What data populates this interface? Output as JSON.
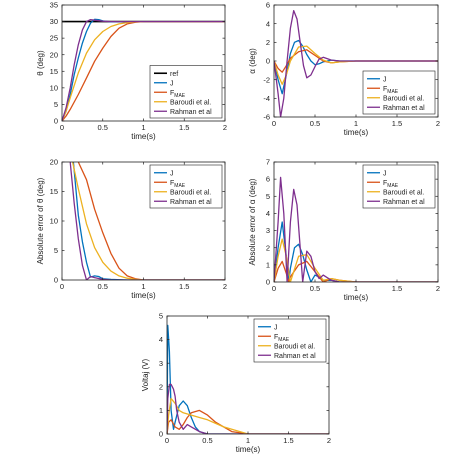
{
  "figure": {
    "colors": {
      "ref": "#000000",
      "J": "#0072BD",
      "FMAE": "#D95319",
      "Baroudi": "#EDB120",
      "Rahman": "#7E2F8E"
    }
  },
  "chart_data": [
    {
      "id": "theta",
      "type": "line",
      "xlabel": "time(s)",
      "ylabel": "θ (deg)",
      "xlim": [
        0,
        2
      ],
      "ylim": [
        0,
        35
      ],
      "xticks": [
        0,
        0.5,
        1,
        1.5,
        2
      ],
      "xtick_labels": [
        "0",
        "0.5",
        "1",
        "1.5",
        "2"
      ],
      "yticks": [
        0,
        5,
        10,
        15,
        20,
        25,
        30,
        35
      ],
      "ytick_labels": [
        "0",
        "5",
        "10",
        "15",
        "20",
        "25",
        "30",
        "35"
      ],
      "legend_position": "bottom-right",
      "series": [
        {
          "key": "ref",
          "name": "ref",
          "sub": "",
          "x": [
            0,
            2
          ],
          "y": [
            30,
            30
          ]
        },
        {
          "key": "J",
          "name": "J",
          "sub": "",
          "x": [
            0,
            0.05,
            0.1,
            0.15,
            0.2,
            0.25,
            0.3,
            0.35,
            0.4,
            0.45,
            0.5,
            0.6,
            0.7,
            0.8,
            1.0,
            2.0
          ],
          "y": [
            0,
            3,
            8,
            14,
            19,
            23.5,
            27,
            29.5,
            30.7,
            30.6,
            30.2,
            29.9,
            30,
            30,
            30,
            30
          ]
        },
        {
          "key": "FMAE",
          "name": "F",
          "sub": "MAE",
          "x": [
            0,
            0.05,
            0.1,
            0.2,
            0.3,
            0.4,
            0.5,
            0.6,
            0.7,
            0.8,
            0.9,
            1.0,
            2.0
          ],
          "y": [
            0,
            1.5,
            3.5,
            8,
            13,
            18,
            22,
            25.5,
            28,
            29.3,
            29.8,
            30,
            30
          ]
        },
        {
          "key": "Baroudi",
          "name": "Baroudi et al.",
          "sub": "",
          "x": [
            0,
            0.05,
            0.1,
            0.2,
            0.3,
            0.4,
            0.5,
            0.6,
            0.7,
            0.8,
            0.9,
            1.0,
            2.0
          ],
          "y": [
            0,
            3,
            7,
            14.5,
            20.5,
            24.5,
            27,
            28.5,
            29.3,
            29.7,
            29.9,
            30,
            30
          ]
        },
        {
          "key": "Rahman",
          "name": "Rahman et al",
          "sub": "",
          "x": [
            0,
            0.05,
            0.1,
            0.15,
            0.2,
            0.25,
            0.3,
            0.35,
            0.4,
            0.5,
            0.6,
            0.8,
            2.0
          ],
          "y": [
            0,
            4,
            10,
            17,
            23,
            27.5,
            30,
            30.6,
            30.4,
            30.1,
            30,
            30,
            30
          ]
        }
      ]
    },
    {
      "id": "alpha",
      "type": "line",
      "xlabel": "time(s)",
      "ylabel": "α (deg)",
      "xlim": [
        0,
        2
      ],
      "ylim": [
        -6,
        6
      ],
      "xticks": [
        0,
        0.5,
        1,
        1.5,
        2
      ],
      "xtick_labels": [
        "0",
        "0.5",
        "1",
        "1.5",
        "2"
      ],
      "yticks": [
        -6,
        -4,
        -2,
        0,
        2,
        4,
        6
      ],
      "ytick_labels": [
        "-6",
        "-4",
        "-2",
        "0",
        "2",
        "4",
        "6"
      ],
      "legend_position": "bottom-right",
      "series": [
        {
          "key": "J",
          "name": "J",
          "sub": "",
          "x": [
            0,
            0.05,
            0.1,
            0.15,
            0.2,
            0.25,
            0.3,
            0.35,
            0.4,
            0.45,
            0.5,
            0.55,
            0.6,
            0.7,
            0.8,
            1.0,
            2.0
          ],
          "y": [
            0,
            -2,
            -3.5,
            -1.5,
            0.8,
            2.0,
            2.2,
            1.6,
            0.7,
            0,
            -0.4,
            -0.3,
            -0.1,
            0.1,
            0,
            0,
            0
          ]
        },
        {
          "key": "FMAE",
          "name": "F",
          "sub": "MAE",
          "x": [
            0,
            0.05,
            0.1,
            0.15,
            0.2,
            0.3,
            0.4,
            0.5,
            0.6,
            0.7,
            0.8,
            1.0,
            2.0
          ],
          "y": [
            0,
            -0.8,
            -1.2,
            -0.5,
            0.3,
            1.0,
            1.2,
            0.6,
            0,
            -0.2,
            -0.1,
            0,
            0
          ]
        },
        {
          "key": "Baroudi",
          "name": "Baroudi et al.",
          "sub": "",
          "x": [
            0,
            0.05,
            0.1,
            0.15,
            0.2,
            0.3,
            0.4,
            0.5,
            0.6,
            0.7,
            0.8,
            1.0,
            2.0
          ],
          "y": [
            0,
            -1.5,
            -2.5,
            -1.5,
            0,
            1.5,
            1.6,
            0.8,
            0.1,
            -0.2,
            -0.1,
            0,
            0
          ]
        },
        {
          "key": "Rahman",
          "name": "Rahman et al",
          "sub": "",
          "x": [
            0,
            0.05,
            0.08,
            0.12,
            0.16,
            0.2,
            0.24,
            0.28,
            0.32,
            0.36,
            0.4,
            0.45,
            0.5,
            0.55,
            0.6,
            0.7,
            0.8,
            2.0
          ],
          "y": [
            0,
            -3.5,
            -6,
            -4,
            0,
            3.5,
            5.4,
            4.5,
            2,
            -0.5,
            -1.8,
            -1.5,
            -0.6,
            0.2,
            0.4,
            0.1,
            0,
            0
          ]
        }
      ]
    },
    {
      "id": "err_theta",
      "type": "line",
      "xlabel": "time(s)",
      "ylabel": "Absolute error of θ (deg)",
      "xlim": [
        0,
        2
      ],
      "ylim": [
        0,
        20
      ],
      "xticks": [
        0,
        0.5,
        1,
        1.5,
        2
      ],
      "xtick_labels": [
        "0",
        "0.5",
        "1",
        "1.5",
        "2"
      ],
      "yticks": [
        0,
        5,
        10,
        15,
        20
      ],
      "ytick_labels": [
        "0",
        "5",
        "10",
        "15",
        "20"
      ],
      "legend_position": "top-right",
      "series": [
        {
          "key": "J",
          "name": "J",
          "sub": "",
          "x": [
            0.14,
            0.2,
            0.25,
            0.3,
            0.35,
            0.4,
            0.45,
            0.5,
            0.6,
            0.8,
            2.0
          ],
          "y": [
            20,
            11,
            6.5,
            3,
            0.5,
            0.7,
            0.6,
            0.2,
            0.1,
            0,
            0
          ]
        },
        {
          "key": "FMAE",
          "name": "F",
          "sub": "MAE",
          "x": [
            0.2,
            0.3,
            0.4,
            0.5,
            0.6,
            0.7,
            0.8,
            0.9,
            1.0,
            2.0
          ],
          "y": [
            20,
            17,
            12,
            8,
            4.5,
            2,
            0.7,
            0.2,
            0,
            0
          ]
        },
        {
          "key": "Baroudi",
          "name": "Baroudi et al.",
          "sub": "",
          "x": [
            0.13,
            0.2,
            0.3,
            0.4,
            0.5,
            0.6,
            0.7,
            0.8,
            0.9,
            1.0,
            2.0
          ],
          "y": [
            20,
            15.5,
            9.5,
            5.5,
            3,
            1.5,
            0.7,
            0.3,
            0.1,
            0,
            0
          ]
        },
        {
          "key": "Rahman",
          "name": "Rahman et al",
          "sub": "",
          "x": [
            0.1,
            0.15,
            0.2,
            0.25,
            0.3,
            0.35,
            0.4,
            0.5,
            0.6,
            0.8,
            2.0
          ],
          "y": [
            20,
            13,
            7,
            2.5,
            0,
            0.6,
            0.4,
            0.1,
            0,
            0,
            0
          ]
        }
      ]
    },
    {
      "id": "err_alpha",
      "type": "line",
      "xlabel": "time(s)",
      "ylabel": "Absolute error of α (deg)",
      "xlim": [
        0,
        2
      ],
      "ylim": [
        0,
        7
      ],
      "xticks": [
        0,
        0.5,
        1,
        1.5,
        2
      ],
      "xtick_labels": [
        "0",
        "0.5",
        "1",
        "1.5",
        "2"
      ],
      "yticks": [
        0,
        1,
        2,
        3,
        4,
        5,
        6,
        7
      ],
      "ytick_labels": [
        "0",
        "1",
        "2",
        "3",
        "4",
        "5",
        "6",
        "7"
      ],
      "legend_position": "top-right",
      "series": [
        {
          "key": "J",
          "name": "J",
          "sub": "",
          "x": [
            0,
            0.05,
            0.1,
            0.15,
            0.18,
            0.2,
            0.25,
            0.3,
            0.35,
            0.4,
            0.45,
            0.5,
            0.55,
            0.6,
            0.7,
            0.8,
            1.0,
            2.0
          ],
          "y": [
            0,
            2,
            3.5,
            1.5,
            0,
            0.8,
            2.0,
            2.2,
            1.6,
            0.7,
            0,
            0.4,
            0.3,
            0.1,
            0.1,
            0,
            0,
            0
          ]
        },
        {
          "key": "FMAE",
          "name": "F",
          "sub": "MAE",
          "x": [
            0,
            0.05,
            0.1,
            0.15,
            0.18,
            0.2,
            0.3,
            0.4,
            0.5,
            0.6,
            0.7,
            0.8,
            1.0,
            2.0
          ],
          "y": [
            0,
            0.8,
            1.2,
            0.5,
            0,
            0.3,
            1.0,
            1.2,
            0.6,
            0,
            0.2,
            0.1,
            0,
            0
          ]
        },
        {
          "key": "Baroudi",
          "name": "Baroudi et al.",
          "sub": "",
          "x": [
            0,
            0.05,
            0.1,
            0.15,
            0.2,
            0.3,
            0.4,
            0.5,
            0.6,
            0.7,
            0.8,
            1.0,
            2.0
          ],
          "y": [
            0,
            1.5,
            2.5,
            1.5,
            0,
            1.5,
            1.6,
            0.8,
            0.1,
            0.2,
            0.1,
            0,
            0
          ]
        },
        {
          "key": "Rahman",
          "name": "Rahman et al",
          "sub": "",
          "x": [
            0,
            0.05,
            0.08,
            0.12,
            0.16,
            0.2,
            0.24,
            0.28,
            0.32,
            0.35,
            0.4,
            0.45,
            0.5,
            0.55,
            0.6,
            0.7,
            0.8,
            2.0
          ],
          "y": [
            0,
            3.5,
            6.1,
            4,
            0,
            3.5,
            5.4,
            4.5,
            2,
            0,
            1.8,
            1.5,
            0.6,
            0.2,
            0.4,
            0.1,
            0,
            0
          ]
        }
      ]
    },
    {
      "id": "voltage",
      "type": "line",
      "xlabel": "time(s)",
      "ylabel": "Voltaj (V)",
      "xlim": [
        0,
        2
      ],
      "ylim": [
        0,
        5
      ],
      "xticks": [
        0,
        0.5,
        1,
        1.5,
        2
      ],
      "xtick_labels": [
        "0",
        "0.5",
        "1",
        "1.5",
        "2"
      ],
      "yticks": [
        0,
        1,
        2,
        3,
        4,
        5
      ],
      "ytick_labels": [
        "0",
        "1",
        "2",
        "3",
        "4",
        "5"
      ],
      "legend_position": "top-right",
      "series": [
        {
          "key": "J",
          "name": "J",
          "sub": "",
          "x": [
            0,
            0.01,
            0.03,
            0.05,
            0.08,
            0.1,
            0.15,
            0.2,
            0.25,
            0.3,
            0.35,
            0.4,
            0.5,
            0.6,
            2.0
          ],
          "y": [
            0,
            4.6,
            3.5,
            1,
            0.2,
            0.5,
            1.2,
            1.4,
            1.2,
            0.7,
            0.3,
            0.1,
            0,
            0,
            0
          ]
        },
        {
          "key": "FMAE",
          "name": "F",
          "sub": "MAE",
          "x": [
            0,
            0.02,
            0.05,
            0.1,
            0.15,
            0.2,
            0.25,
            0.3,
            0.4,
            0.5,
            0.6,
            0.7,
            0.8,
            1.0,
            2.0
          ],
          "y": [
            0,
            0.5,
            0.6,
            0.3,
            0.2,
            0.4,
            0.7,
            0.9,
            1.0,
            0.8,
            0.5,
            0.3,
            0.1,
            0,
            0
          ]
        },
        {
          "key": "Baroudi",
          "name": "Baroudi et al.",
          "sub": "",
          "x": [
            0,
            0.02,
            0.05,
            0.1,
            0.15,
            0.2,
            0.3,
            0.4,
            0.5,
            0.6,
            0.7,
            0.8,
            0.9,
            1.0,
            2.0
          ],
          "y": [
            0,
            0.8,
            1.5,
            1.3,
            1.0,
            0.9,
            0.8,
            0.7,
            0.6,
            0.45,
            0.3,
            0.2,
            0.1,
            0,
            0
          ]
        },
        {
          "key": "Rahman",
          "name": "Rahman et al",
          "sub": "",
          "x": [
            0,
            0.01,
            0.03,
            0.05,
            0.08,
            0.1,
            0.12,
            0.15,
            0.2,
            0.25,
            0.3,
            0.4,
            0.5,
            2.0
          ],
          "y": [
            0,
            1.5,
            2.1,
            2.1,
            1.9,
            1.6,
            1.0,
            0.5,
            0.2,
            0.4,
            0.3,
            0.1,
            0,
            0
          ]
        }
      ]
    }
  ]
}
